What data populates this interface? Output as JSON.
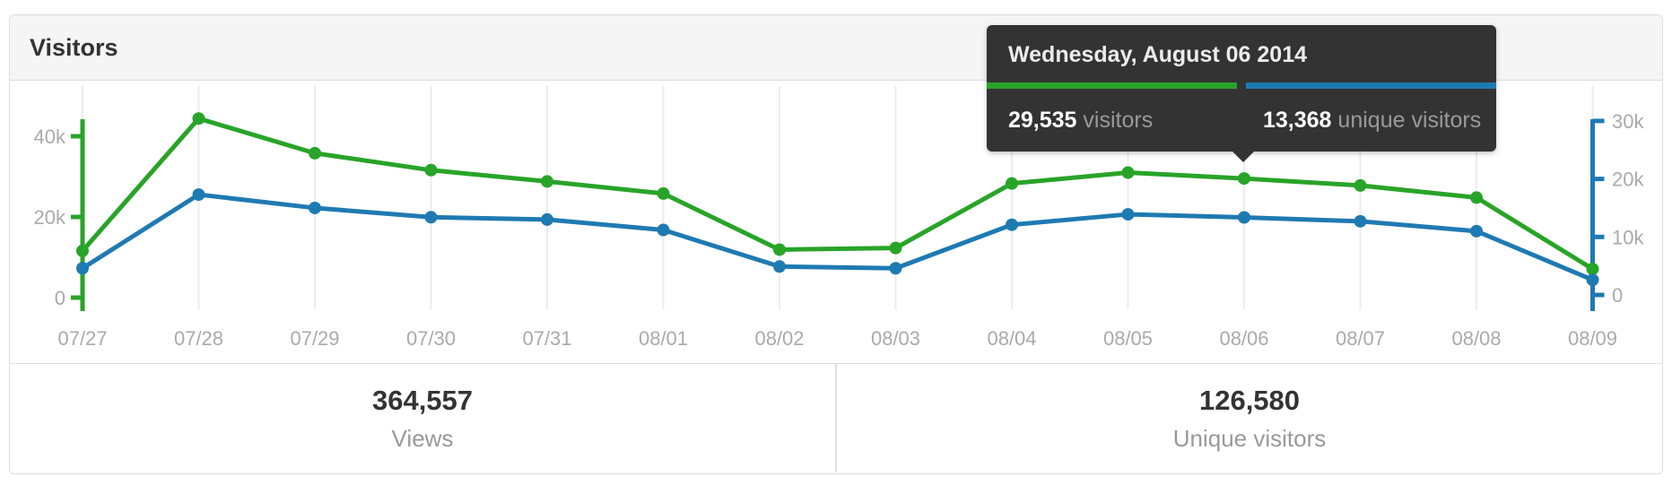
{
  "panel": {
    "title": "Visitors"
  },
  "tooltip": {
    "date": "Wednesday, August 06 2014",
    "visitors_value": "29,535",
    "visitors_label": "visitors",
    "unique_value": "13,368",
    "unique_label": "unique visitors"
  },
  "summary": {
    "views": {
      "value": "364,557",
      "label": "Views"
    },
    "unique": {
      "value": "126,580",
      "label": "Unique visitors"
    }
  },
  "colors": {
    "visitors_green": "#28a428",
    "unique_blue": "#1e7ab2",
    "grid": "#ececec",
    "axis_label": "#aaaaaa",
    "tooltip_bg": "#333333"
  },
  "chart_data": {
    "type": "line",
    "title": "Visitors",
    "categories": [
      "07/27",
      "07/28",
      "07/29",
      "07/30",
      "07/31",
      "08/01",
      "08/02",
      "08/03",
      "08/04",
      "08/05",
      "08/06",
      "08/07",
      "08/08",
      "08/09"
    ],
    "series": [
      {
        "name": "visitors",
        "axis": "left",
        "color_key": "visitors_green",
        "values": [
          11600,
          44400,
          35800,
          31600,
          28800,
          25800,
          11900,
          12300,
          28300,
          31000,
          29535,
          27800,
          24800,
          7100
        ]
      },
      {
        "name": "unique visitors",
        "axis": "right",
        "color_key": "unique_blue",
        "values": [
          4600,
          17300,
          15000,
          13400,
          13000,
          11200,
          4900,
          4600,
          12100,
          13900,
          13368,
          12700,
          11000,
          2600
        ]
      }
    ],
    "left_axis": {
      "tick_labels": [
        "0",
        "20k",
        "40k"
      ],
      "tick_values": [
        0,
        20000,
        40000
      ],
      "range": [
        0,
        45000
      ]
    },
    "right_axis": {
      "tick_labels": [
        "0",
        "10k",
        "20k",
        "30k"
      ],
      "tick_values": [
        0,
        10000,
        20000,
        30000
      ],
      "range": [
        0,
        31000
      ]
    },
    "grid": true,
    "legend": "none",
    "highlighted_index": 10
  }
}
